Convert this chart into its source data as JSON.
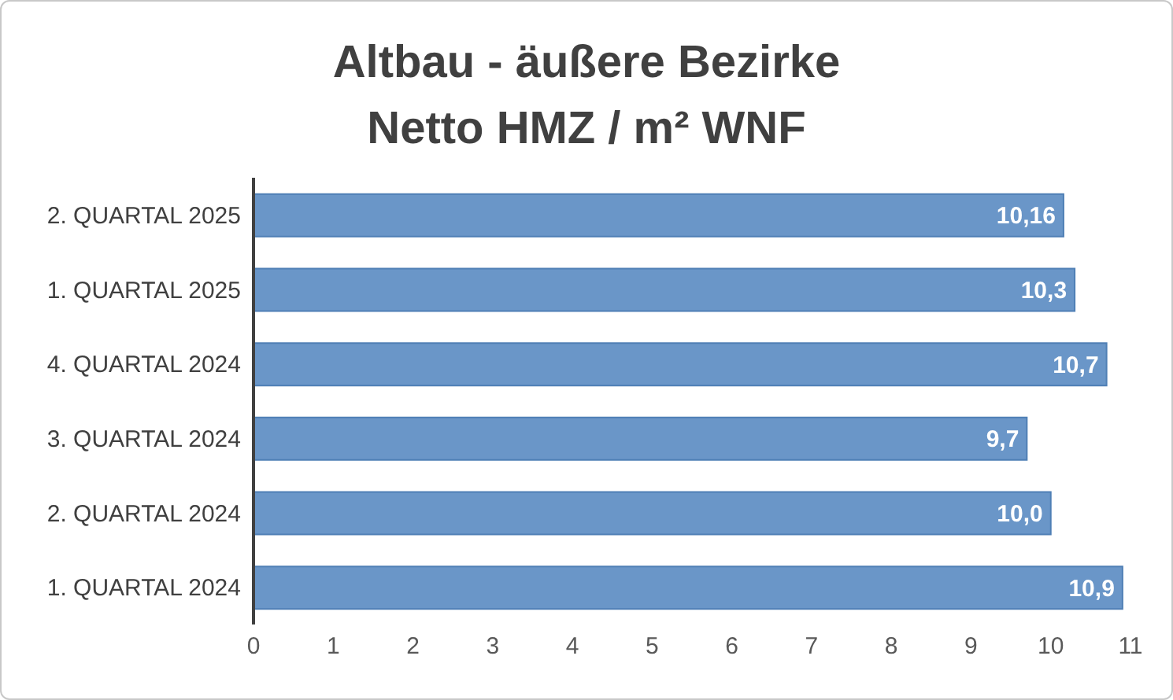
{
  "chart_data": {
    "type": "bar",
    "orientation": "horizontal",
    "title": "Altbau - äußere Bezirke\nNetto HMZ / m² WNF",
    "categories": [
      "2. QUARTAL 2025",
      "1. QUARTAL 2025",
      "4. QUARTAL 2024",
      "3. QUARTAL 2024",
      "2. QUARTAL 2024",
      "1. QUARTAL 2024"
    ],
    "values": [
      10.16,
      10.3,
      10.7,
      9.7,
      10.0,
      10.9
    ],
    "value_labels": [
      "10,16",
      "10,3",
      "10,7",
      "9,7",
      "10,0",
      "10,9"
    ],
    "color": "#6a96c8",
    "xlim": [
      0,
      11
    ],
    "xticks": [
      0,
      1,
      2,
      3,
      4,
      5,
      6,
      7,
      8,
      9,
      10,
      11
    ]
  }
}
